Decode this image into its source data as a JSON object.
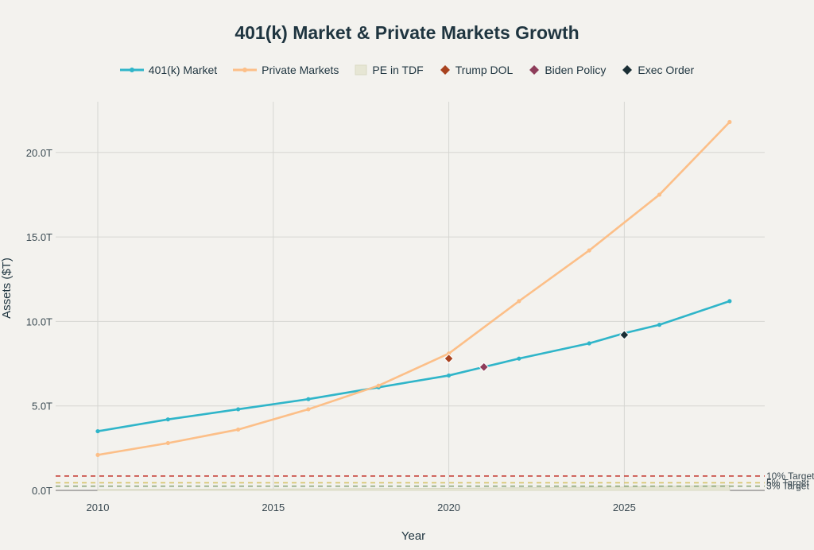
{
  "chart_data": {
    "type": "line",
    "title": "401(k) Market & Private Markets Growth",
    "xlabel": "Year",
    "ylabel": "Assets ($T)",
    "xlim": [
      2008.8,
      2029.0
    ],
    "ylim": [
      0,
      23.0
    ],
    "x_ticks": [
      2010,
      2015,
      2020,
      2025
    ],
    "x_tick_labels": [
      "2010",
      "2015",
      "2020",
      "2025"
    ],
    "y_ticks": [
      0,
      5,
      10,
      15,
      20
    ],
    "y_tick_labels": [
      "0.0T",
      "5.0T",
      "10.0T",
      "15.0T",
      "20.0T"
    ],
    "grid": true,
    "legend_position": "top-center",
    "series": [
      {
        "name": "401(k) Market",
        "color": "#2fb5c9",
        "marker": "circle",
        "x": [
          2010,
          2012,
          2014,
          2016,
          2018,
          2020,
          2021,
          2022,
          2024,
          2025,
          2026,
          2028
        ],
        "values": [
          3.5,
          4.2,
          4.8,
          5.4,
          6.1,
          6.8,
          7.3,
          7.8,
          8.7,
          9.3,
          9.8,
          11.2
        ]
      },
      {
        "name": "Private Markets",
        "color": "#fcbf88",
        "marker": "circle",
        "x": [
          2010,
          2012,
          2014,
          2016,
          2018,
          2020,
          2022,
          2024,
          2026,
          2028
        ],
        "values": [
          2.1,
          2.8,
          3.6,
          4.8,
          6.2,
          8.1,
          11.2,
          14.2,
          17.5,
          21.8
        ]
      }
    ],
    "legend_extra": [
      {
        "name": "PE in TDF",
        "color": "#e6e6d4",
        "shape": "square"
      },
      {
        "name": "Trump DOL",
        "color": "#a8421f",
        "shape": "diamond"
      },
      {
        "name": "Biden Policy",
        "color": "#8e3d5a",
        "shape": "diamond"
      },
      {
        "name": "Exec Order",
        "color": "#1a2e35",
        "shape": "diamond"
      }
    ],
    "events": [
      {
        "name": "Trump DOL",
        "x": 2020,
        "y": 7.8,
        "color": "#a8421f"
      },
      {
        "name": "Biden Policy",
        "x": 2021,
        "y": 7.3,
        "color": "#8e3d5a"
      },
      {
        "name": "Exec Order",
        "x": 2025,
        "y": 9.2,
        "color": "#1a2e35"
      }
    ],
    "target_lines": [
      {
        "label": "10% Target",
        "y": 0.85,
        "color": "#c8443c"
      },
      {
        "label": "5% Target",
        "y": 0.45,
        "color": "#d7c46a"
      },
      {
        "label": "3% Target",
        "y": 0.25,
        "color": "#8fa87a"
      }
    ],
    "pe_in_tdf": [
      {
        "x": 2010,
        "y": 0.05
      },
      {
        "x": 2015,
        "y": 0.08
      },
      {
        "x": 2020,
        "y": 0.12
      },
      {
        "x": 2025,
        "y": 0.2
      },
      {
        "x": 2028,
        "y": 0.3
      }
    ]
  }
}
